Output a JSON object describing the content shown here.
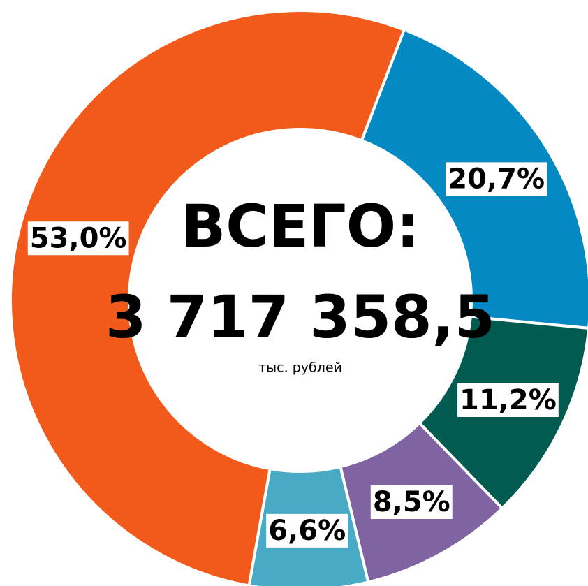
{
  "chart_data": {
    "type": "donut",
    "center_title": "ВСЕГО:",
    "total_label": "3 717 358,5",
    "unit_label": "тыс. рублей",
    "categories": [
      null,
      null,
      null,
      null,
      null
    ],
    "values": [
      20.7,
      11.2,
      8.5,
      6.6,
      53.0
    ],
    "value_labels": [
      "20,7%",
      "11,2%",
      "8,5%",
      "6,6%",
      "53,0%"
    ],
    "colors": [
      "#0589c3",
      "#025b50",
      "#8064a2",
      "#49aac6",
      "#f15a1a"
    ]
  }
}
